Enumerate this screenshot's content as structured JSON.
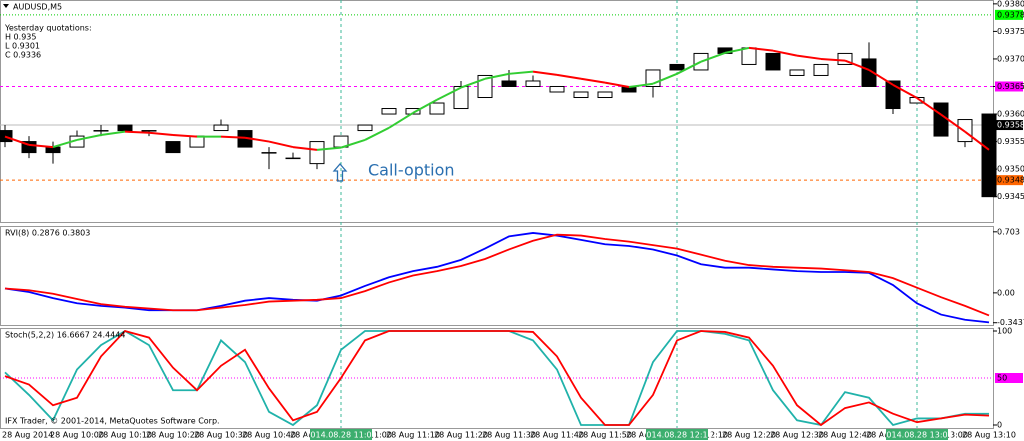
{
  "chart_data": [
    {
      "type": "candlestick",
      "title": "AUDUSD,M5",
      "info": [
        "Yesterday quotations:",
        "H 0.935",
        "L 0.9301",
        "C 0.9336"
      ],
      "annotation": "Call-option",
      "up_color": "#ffffff",
      "down_color": "#000000",
      "open": [
        0.9357,
        0.9355,
        0.9354,
        0.9354,
        0.9357,
        0.9358,
        0.9357,
        0.9355,
        0.9354,
        0.9357,
        0.9357,
        0.9353,
        0.9352,
        0.9351,
        0.9354,
        0.9357,
        0.936,
        0.936,
        0.936,
        0.9361,
        0.9363,
        0.9366,
        0.9365,
        0.9364,
        0.9363,
        0.9363,
        0.9365,
        0.9365,
        0.9369,
        0.9368,
        0.9372,
        0.9369,
        0.9371,
        0.9367,
        0.9367,
        0.9369,
        0.937,
        0.9366,
        0.9362,
        0.9362,
        0.9355,
        0.936
      ],
      "high": [
        0.9358,
        0.9356,
        0.9355,
        0.9357,
        0.9358,
        0.9358,
        0.9357,
        0.9355,
        0.9356,
        0.9359,
        0.9357,
        0.9354,
        0.9353,
        0.9355,
        0.9356,
        0.9358,
        0.9361,
        0.9361,
        0.9362,
        0.9366,
        0.9367,
        0.9368,
        0.9367,
        0.9365,
        0.9364,
        0.9364,
        0.9365,
        0.9368,
        0.9369,
        0.9371,
        0.9372,
        0.9372,
        0.9371,
        0.9368,
        0.9369,
        0.9371,
        0.9373,
        0.9366,
        0.9363,
        0.9362,
        0.9359,
        0.936
      ],
      "low": [
        0.9354,
        0.9352,
        0.9351,
        0.9354,
        0.9356,
        0.9357,
        0.9356,
        0.9353,
        0.9354,
        0.9357,
        0.9354,
        0.935,
        0.9352,
        0.935,
        0.9354,
        0.9357,
        0.936,
        0.936,
        0.936,
        0.9361,
        0.9363,
        0.9365,
        0.9365,
        0.9364,
        0.9363,
        0.9363,
        0.9364,
        0.9363,
        0.9368,
        0.9368,
        0.9371,
        0.9369,
        0.9368,
        0.9367,
        0.9367,
        0.9369,
        0.9365,
        0.936,
        0.9362,
        0.9356,
        0.9354,
        0.9345
      ],
      "close": [
        0.9355,
        0.9353,
        0.9353,
        0.9356,
        0.9357,
        0.9357,
        0.9357,
        0.9353,
        0.9356,
        0.9358,
        0.9354,
        0.9353,
        0.9352,
        0.9355,
        0.9356,
        0.9358,
        0.9361,
        0.9361,
        0.9362,
        0.9365,
        0.9367,
        0.9365,
        0.9366,
        0.9365,
        0.9364,
        0.9364,
        0.9364,
        0.9368,
        0.9368,
        0.9371,
        0.9371,
        0.9372,
        0.9368,
        0.9368,
        0.9369,
        0.9371,
        0.9365,
        0.9361,
        0.9363,
        0.9356,
        0.9359,
        0.9345
      ],
      "series": [
        {
          "up_color": "#32cd32",
          "down_color": "#ff0000",
          "values": [
            0.93559,
            0.93544,
            0.9354,
            0.93553,
            0.93562,
            0.93568,
            0.93566,
            0.93562,
            0.93559,
            0.93559,
            0.93557,
            0.9355,
            0.9354,
            0.93535,
            0.93539,
            0.93553,
            0.93575,
            0.93602,
            0.93626,
            0.93648,
            0.93664,
            0.93673,
            0.93677,
            0.93671,
            0.93664,
            0.93657,
            0.93649,
            0.93655,
            0.93673,
            0.93695,
            0.93711,
            0.9372,
            0.93715,
            0.93706,
            0.937,
            0.93697,
            0.9368,
            0.93653,
            0.93629,
            0.93599,
            0.93568,
            0.93535
          ]
        }
      ],
      "ylim": [
        0.93404,
        0.93807
      ],
      "yticks": [
        {
          "value": 0.938,
          "label": "0.9380"
        },
        0.9375,
        {
          "value": 0.937,
          "label": "0.9370"
        },
        0.9365,
        {
          "value": 0.936,
          "label": "0.9360"
        },
        0.9355,
        {
          "value": 0.935,
          "label": "0.9350"
        },
        0.9345
      ],
      "levels": [
        {
          "value": 0.9378,
          "color": "#00ff00",
          "line_color": "#00cc00",
          "text_color": "#000000"
        },
        {
          "value": 0.9365,
          "color": "#ff00ff",
          "line_color": "#ff00ff",
          "text_color": "#000000"
        },
        {
          "value": 0.9358,
          "color": "#000000",
          "line_color": "#bbbbbb",
          "text_color": "#ffffff"
        },
        {
          "value": 0.9348,
          "color": "#ff6600",
          "line_color": "#ff6600",
          "text_color": "#000000"
        }
      ]
    },
    {
      "type": "line",
      "title": "RVI(8) 0.2876 0.3803",
      "series": [
        {
          "color": "#0000ff",
          "values": [
            0.05,
            0.01,
            -0.06,
            -0.12,
            -0.15,
            -0.17,
            -0.2,
            -0.2,
            -0.2,
            -0.15,
            -0.09,
            -0.06,
            -0.08,
            -0.09,
            -0.03,
            0.08,
            0.18,
            0.25,
            0.3,
            0.38,
            0.51,
            0.65,
            0.69,
            0.66,
            0.61,
            0.56,
            0.54,
            0.5,
            0.43,
            0.33,
            0.29,
            0.29,
            0.27,
            0.25,
            0.24,
            0.24,
            0.23,
            0.09,
            -0.12,
            -0.25,
            -0.31,
            -0.34
          ]
        },
        {
          "color": "#ff0000",
          "values": [
            0.05,
            0.03,
            -0.01,
            -0.07,
            -0.13,
            -0.16,
            -0.18,
            -0.2,
            -0.2,
            -0.17,
            -0.14,
            -0.1,
            -0.09,
            -0.08,
            -0.06,
            0.02,
            0.12,
            0.2,
            0.25,
            0.31,
            0.39,
            0.5,
            0.6,
            0.67,
            0.66,
            0.62,
            0.59,
            0.55,
            0.51,
            0.44,
            0.37,
            0.32,
            0.3,
            0.29,
            0.28,
            0.26,
            0.24,
            0.17,
            0.06,
            -0.05,
            -0.15,
            -0.26
          ]
        }
      ],
      "ylim": [
        -0.37,
        0.77
      ],
      "yticks": [
        0.703,
        {
          "value": 0,
          "label": "0.00"
        },
        -0.3437
      ]
    },
    {
      "type": "line",
      "title": "Stoch(5,2,2) 16.6667 24.4444",
      "footer": "IFX Trader, © 2001-2014, MetaQuotes Software Corp.",
      "series": [
        {
          "color": "#20b2aa",
          "values": [
            56,
            32,
            5,
            59,
            85,
            100,
            85,
            37,
            37,
            90,
            67,
            14,
            0,
            21,
            80,
            100,
            100,
            100,
            100,
            100,
            100,
            100,
            90,
            59,
            0,
            0,
            0,
            67,
            100,
            100,
            97,
            90,
            37,
            5,
            0,
            35,
            29,
            0,
            7,
            7,
            12,
            12
          ]
        },
        {
          "color": "#ff0000",
          "values": [
            52,
            43,
            21,
            29,
            73,
            100,
            93,
            61,
            37,
            63,
            80,
            39,
            5,
            14,
            50,
            90,
            100,
            100,
            100,
            100,
            100,
            100,
            99,
            73,
            29,
            0,
            0,
            32,
            90,
            100,
            99,
            93,
            63,
            21,
            0,
            18,
            24,
            12,
            3,
            7,
            11,
            10
          ]
        }
      ],
      "ylim": [
        -3.2,
        103.2
      ],
      "yticks": [
        100,
        0
      ],
      "levels": [
        {
          "value": 50,
          "color": "#ff00ff",
          "line_color": "#ff00ff",
          "text_color": "#000000"
        }
      ]
    }
  ],
  "time_axis": {
    "labels": [
      "28 Aug 2014",
      "28 Aug 10:00",
      "28 Aug 10:10",
      "28 Aug 10:20",
      "28 Aug 10:30",
      "28 Aug 10:40",
      "28 Aug 10:50",
      "28 Aug 11:00",
      "28 Aug 11:10",
      "28 Aug 11:20",
      "28 Aug 11:30",
      "28 Aug 11:40",
      "28 Aug 11:50",
      "28 Aug 12:00",
      "28 Aug 12:10",
      "28 Aug 12:20",
      "28 Aug 12:30",
      "28 Aug 12:40",
      "28 Aug 12:50",
      "28 Aug 13:00",
      "28 Aug 13:10"
    ],
    "markers": [
      "2014.08.28 11:00",
      "2014.08.28 12:10",
      "2014.08.28 13:00"
    ]
  }
}
